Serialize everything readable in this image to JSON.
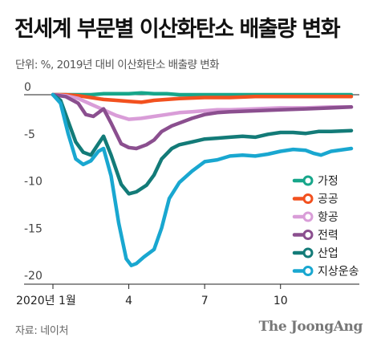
{
  "header": {
    "title": "전세계 부문별 이산화탄소 배출량 변화",
    "subtitle": "단위: %, 2019년 대비 이산화탄소 배출량 변화"
  },
  "footer": {
    "source": "자료: 네이처",
    "brand": "The JoongAng"
  },
  "chart_data": {
    "type": "line",
    "title": "전세계 부문별 이산화탄소 배출량 변화",
    "subtitle": "단위: %, 2019년 대비 이산화탄소 배출량 변화",
    "xlabel": "",
    "ylabel": "",
    "x_unit": "month",
    "xlim": [
      1,
      12.8
    ],
    "ylim": [
      -20,
      0.5
    ],
    "y_ticks": [
      0,
      -5,
      -10,
      -15,
      -20
    ],
    "y_tick_labels": [
      "0",
      "-5",
      "-10",
      "-15",
      "-20"
    ],
    "x_ticks": [
      1,
      4,
      7,
      10
    ],
    "x_tick_labels": [
      "2020년 1월",
      "4",
      "7",
      "10"
    ],
    "grid": false,
    "legend_position": "right",
    "series": [
      {
        "name": "가정",
        "color": "#17a68a",
        "points": [
          [
            1.0,
            0.0
          ],
          [
            1.5,
            0.0
          ],
          [
            2.0,
            0.0
          ],
          [
            2.5,
            0.0
          ],
          [
            3.0,
            0.1
          ],
          [
            3.5,
            0.1
          ],
          [
            4.0,
            0.1
          ],
          [
            4.5,
            0.2
          ],
          [
            5.0,
            0.1
          ],
          [
            5.5,
            0.1
          ],
          [
            6.0,
            0.0
          ],
          [
            7.0,
            0.0
          ],
          [
            8.0,
            0.0
          ],
          [
            9.0,
            0.0
          ],
          [
            10.0,
            0.0
          ],
          [
            11.0,
            0.0
          ],
          [
            12.0,
            0.0
          ],
          [
            12.8,
            0.0
          ]
        ]
      },
      {
        "name": "공공",
        "color": "#f2511f",
        "points": [
          [
            1.0,
            0.0
          ],
          [
            1.5,
            0.0
          ],
          [
            2.0,
            -0.1
          ],
          [
            2.5,
            -0.3
          ],
          [
            3.0,
            -0.5
          ],
          [
            3.5,
            -0.6
          ],
          [
            4.0,
            -0.7
          ],
          [
            4.5,
            -0.8
          ],
          [
            5.0,
            -0.6
          ],
          [
            5.5,
            -0.5
          ],
          [
            6.0,
            -0.4
          ],
          [
            7.0,
            -0.3
          ],
          [
            8.0,
            -0.3
          ],
          [
            9.0,
            -0.2
          ],
          [
            10.0,
            -0.2
          ],
          [
            11.0,
            -0.2
          ],
          [
            12.0,
            -0.2
          ],
          [
            12.8,
            -0.2
          ]
        ]
      },
      {
        "name": "항공",
        "color": "#d99dd8",
        "points": [
          [
            1.0,
            0.0
          ],
          [
            1.5,
            -0.1
          ],
          [
            2.0,
            -0.4
          ],
          [
            2.5,
            -1.0
          ],
          [
            3.0,
            -1.6
          ],
          [
            3.5,
            -2.2
          ],
          [
            4.0,
            -2.6
          ],
          [
            4.5,
            -2.5
          ],
          [
            5.0,
            -2.3
          ],
          [
            5.5,
            -2.1
          ],
          [
            6.0,
            -1.9
          ],
          [
            6.5,
            -1.8
          ],
          [
            7.0,
            -1.7
          ],
          [
            7.5,
            -1.6
          ],
          [
            8.0,
            -1.6
          ],
          [
            9.0,
            -1.5
          ],
          [
            10.0,
            -1.4
          ],
          [
            11.0,
            -1.4
          ],
          [
            12.0,
            -1.3
          ],
          [
            12.8,
            -1.3
          ]
        ]
      },
      {
        "name": "전력",
        "color": "#8b4f8f",
        "points": [
          [
            1.0,
            0.0
          ],
          [
            1.5,
            -0.2
          ],
          [
            2.0,
            -0.9
          ],
          [
            2.3,
            -2.1
          ],
          [
            2.6,
            -2.3
          ],
          [
            3.0,
            -1.5
          ],
          [
            3.3,
            -3.0
          ],
          [
            3.7,
            -5.2
          ],
          [
            4.0,
            -5.6
          ],
          [
            4.3,
            -5.7
          ],
          [
            4.7,
            -5.3
          ],
          [
            5.0,
            -4.8
          ],
          [
            5.3,
            -3.9
          ],
          [
            5.7,
            -3.3
          ],
          [
            6.0,
            -3.0
          ],
          [
            6.5,
            -2.5
          ],
          [
            7.0,
            -2.1
          ],
          [
            7.5,
            -1.9
          ],
          [
            8.0,
            -1.8
          ],
          [
            9.0,
            -1.7
          ],
          [
            10.0,
            -1.6
          ],
          [
            11.0,
            -1.5
          ],
          [
            12.0,
            -1.4
          ],
          [
            12.8,
            -1.3
          ]
        ]
      },
      {
        "name": "산업",
        "color": "#137b78",
        "points": [
          [
            1.0,
            0.0
          ],
          [
            1.3,
            -0.6
          ],
          [
            1.6,
            -2.8
          ],
          [
            1.9,
            -5.0
          ],
          [
            2.2,
            -6.1
          ],
          [
            2.5,
            -6.4
          ],
          [
            2.8,
            -5.2
          ],
          [
            3.0,
            -4.4
          ],
          [
            3.3,
            -6.4
          ],
          [
            3.7,
            -9.5
          ],
          [
            4.0,
            -10.5
          ],
          [
            4.3,
            -10.3
          ],
          [
            4.7,
            -9.6
          ],
          [
            5.0,
            -8.5
          ],
          [
            5.3,
            -6.8
          ],
          [
            5.7,
            -5.7
          ],
          [
            6.0,
            -5.3
          ],
          [
            6.5,
            -5.0
          ],
          [
            7.0,
            -4.7
          ],
          [
            7.5,
            -4.6
          ],
          [
            8.0,
            -4.5
          ],
          [
            8.5,
            -4.4
          ],
          [
            9.0,
            -4.5
          ],
          [
            9.5,
            -4.2
          ],
          [
            10.0,
            -4.0
          ],
          [
            10.5,
            -4.0
          ],
          [
            11.0,
            -4.1
          ],
          [
            11.5,
            -3.9
          ],
          [
            12.0,
            -3.9
          ],
          [
            12.8,
            -3.8
          ]
        ]
      },
      {
        "name": "지상운송",
        "color": "#19a7d0",
        "points": [
          [
            1.0,
            0.0
          ],
          [
            1.3,
            -0.9
          ],
          [
            1.6,
            -4.1
          ],
          [
            1.9,
            -6.8
          ],
          [
            2.2,
            -7.4
          ],
          [
            2.5,
            -7.0
          ],
          [
            2.8,
            -6.0
          ],
          [
            3.0,
            -5.7
          ],
          [
            3.3,
            -8.6
          ],
          [
            3.6,
            -13.6
          ],
          [
            3.9,
            -17.4
          ],
          [
            4.1,
            -18.1
          ],
          [
            4.3,
            -17.9
          ],
          [
            4.6,
            -17.2
          ],
          [
            5.0,
            -16.4
          ],
          [
            5.3,
            -14.1
          ],
          [
            5.6,
            -11.0
          ],
          [
            6.0,
            -9.3
          ],
          [
            6.5,
            -8.1
          ],
          [
            7.0,
            -7.1
          ],
          [
            7.5,
            -6.9
          ],
          [
            8.0,
            -6.5
          ],
          [
            8.5,
            -6.4
          ],
          [
            9.0,
            -6.5
          ],
          [
            9.5,
            -6.3
          ],
          [
            10.0,
            -6.0
          ],
          [
            10.5,
            -5.8
          ],
          [
            11.0,
            -5.9
          ],
          [
            11.3,
            -6.2
          ],
          [
            11.6,
            -6.4
          ],
          [
            12.0,
            -6.0
          ],
          [
            12.8,
            -5.7
          ]
        ]
      }
    ]
  }
}
